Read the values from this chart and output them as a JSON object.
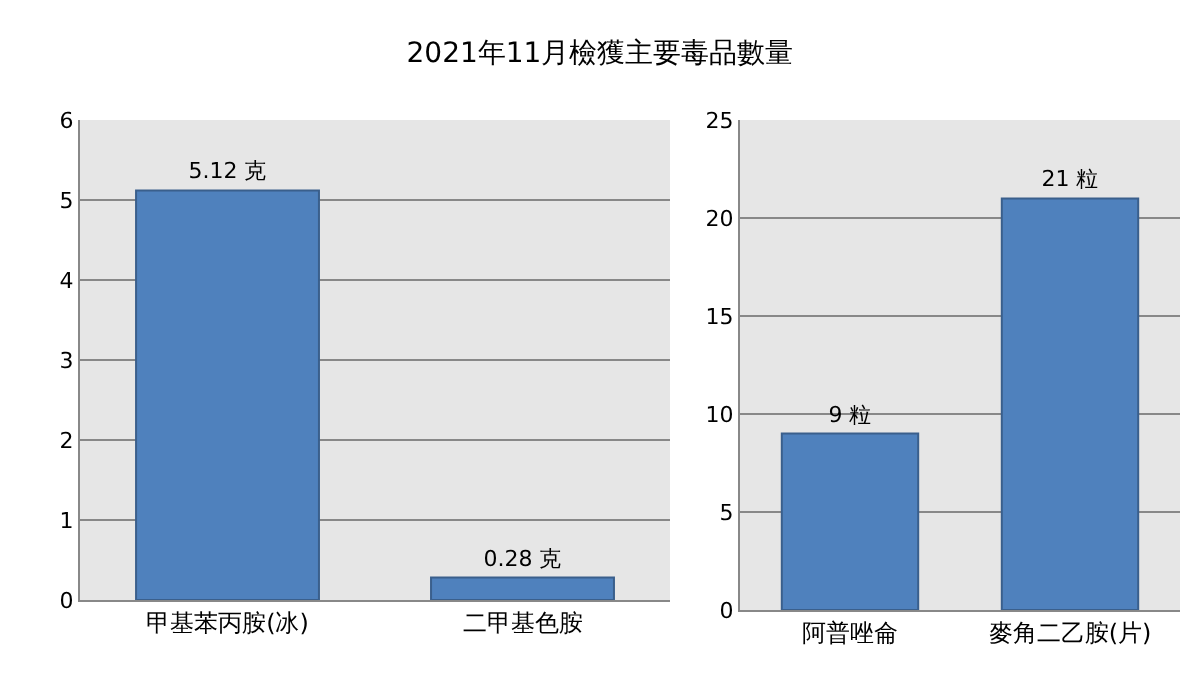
{
  "chart_data": [
    {
      "type": "bar",
      "title": "2021年11月檢獲主要毒品數量",
      "categories": [
        "甲基苯丙胺(冰)",
        "二甲基色胺"
      ],
      "values": [
        5.12,
        0.28
      ],
      "value_labels": [
        "5.12 克",
        "0.28 克"
      ],
      "color": "#4f81bd",
      "ylim": [
        0,
        6
      ],
      "yticks": [
        0,
        1,
        2,
        3,
        4,
        5,
        6
      ],
      "grid": "y"
    },
    {
      "type": "bar",
      "categories": [
        "阿普唑侖",
        "麥角二乙胺(片)"
      ],
      "values": [
        9,
        21
      ],
      "value_labels": [
        "9 粒",
        "21 粒"
      ],
      "color": "#4f81bd",
      "ylim": [
        0,
        25
      ],
      "yticks": [
        0,
        5,
        10,
        15,
        20,
        25
      ],
      "grid": "y"
    }
  ]
}
